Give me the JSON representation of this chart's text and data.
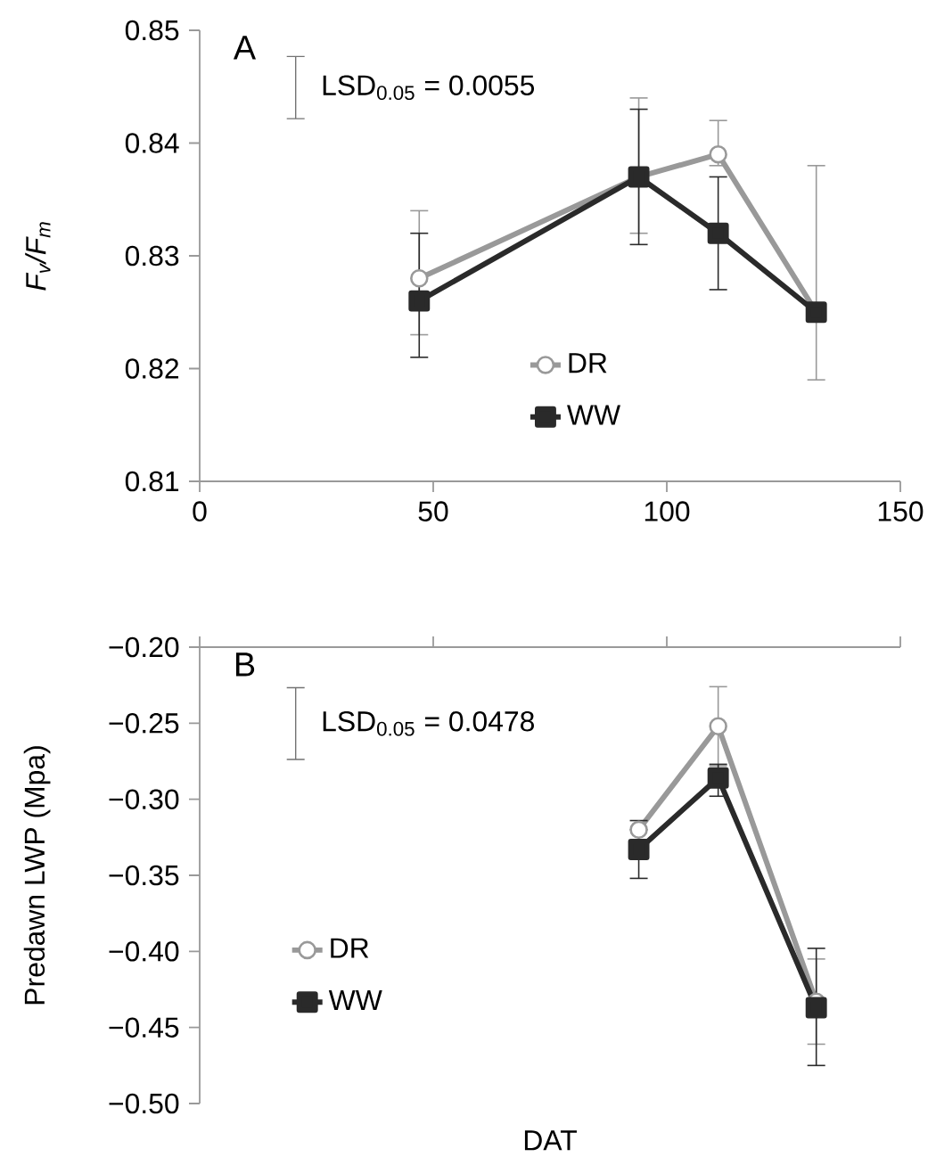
{
  "chart_data": [
    {
      "type": "line",
      "title": "A",
      "ylabel": "F$_{v}$/F$_{m}$",
      "annotations": [
        "LSD$_{0.05}$ = 0.0055"
      ],
      "xlim": [
        0,
        150
      ],
      "xticks": [
        0,
        50,
        100,
        150
      ],
      "ylim": [
        0.81,
        0.85
      ],
      "yticks": [
        0.81,
        0.82,
        0.83,
        0.84,
        0.85
      ],
      "legend": "bottom",
      "grid": false,
      "series": [
        {
          "name": "DR",
          "color": "#999999",
          "marker": "circle",
          "x": [
            47,
            94,
            111,
            132
          ],
          "values": [
            0.828,
            0.837,
            0.839,
            0.825
          ],
          "errors": [
            [
              0.823,
              0.834
            ],
            [
              0.832,
              0.844
            ],
            [
              0.838,
              0.842
            ],
            [
              0.819,
              0.838
            ]
          ]
        },
        {
          "name": "WW",
          "color": "#2a2a2a",
          "marker": "square",
          "x": [
            47,
            94,
            111,
            132
          ],
          "values": [
            0.826,
            0.837,
            0.832,
            0.825
          ],
          "errors": [
            [
              0.821,
              0.832
            ],
            [
              0.831,
              0.843
            ],
            [
              0.827,
              0.837
            ],
            null
          ]
        }
      ]
    },
    {
      "type": "line",
      "title": "B",
      "xlabel": "DAT",
      "ylabel": "Predawn LWP (Mpa)",
      "annotations": [
        "LSD$_{0.05}$ = 0.0478"
      ],
      "xlim": [
        0,
        150
      ],
      "xticks": [
        0,
        50,
        100,
        150
      ],
      "tick_labels": "y",
      "ylim": [
        -0.5,
        -0.2
      ],
      "yticks": [
        {
          "value": -0.5,
          "label": "−0.50"
        },
        {
          "value": -0.45,
          "label": "−0.45"
        },
        {
          "value": -0.4,
          "label": "−0.40"
        },
        {
          "value": -0.35,
          "label": "−0.35"
        },
        {
          "value": -0.3,
          "label": "−0.30"
        },
        {
          "value": -0.25,
          "label": "−0.25"
        },
        {
          "value": -0.2,
          "label": "−0.20"
        }
      ],
      "legend": "left",
      "grid": false,
      "series": [
        {
          "name": "DR",
          "color": "#999999",
          "marker": "circle",
          "x": [
            94,
            111,
            132
          ],
          "values": [
            -0.32,
            -0.252,
            -0.433
          ],
          "errors": [
            null,
            [
              -0.278,
              -0.226
            ],
            [
              -0.461,
              -0.405
            ]
          ]
        },
        {
          "name": "WW",
          "color": "#2a2a2a",
          "marker": "square",
          "x": [
            94,
            111,
            132
          ],
          "values": [
            -0.333,
            -0.286,
            -0.437
          ],
          "errors": [
            [
              -0.352,
              -0.314
            ],
            [
              -0.298,
              -0.277
            ],
            [
              -0.475,
              -0.398
            ]
          ]
        }
      ]
    }
  ]
}
